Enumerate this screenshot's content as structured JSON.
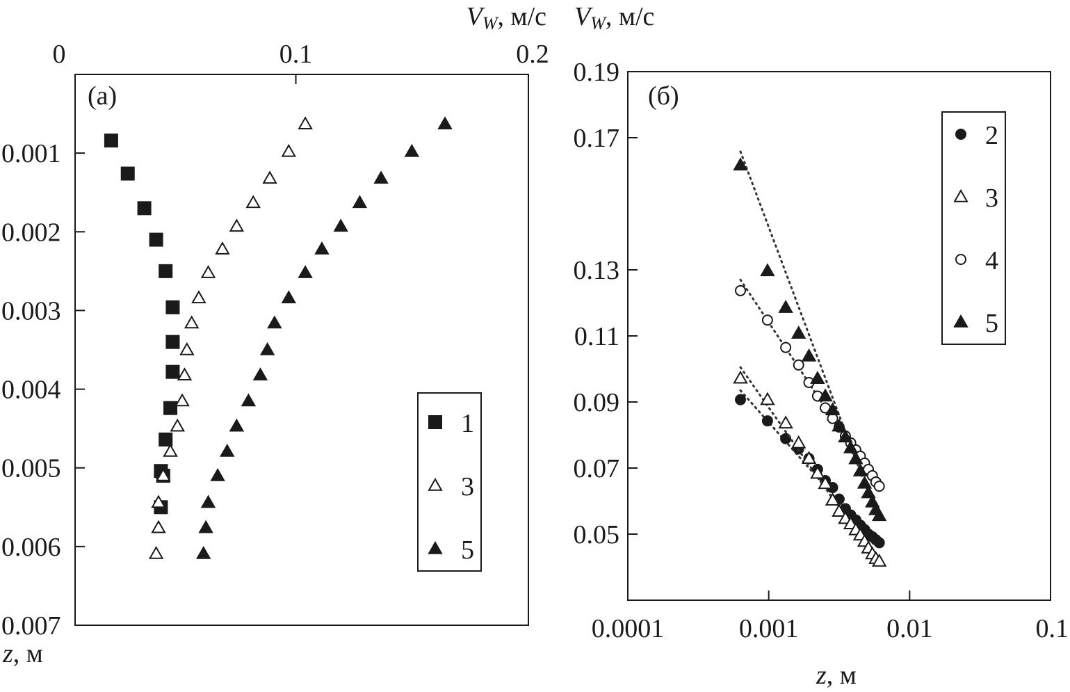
{
  "chart_data": [
    {
      "panel": "(a)",
      "type": "scatter",
      "x_axis_label": "V",
      "x_axis_sub": "W",
      "x_axis_unit": ", м/с",
      "y_axis_label": "z",
      "y_axis_unit": ", м",
      "xlim": [
        0,
        0.2
      ],
      "ylim": [
        0,
        0.007
      ],
      "y_reversed": true,
      "x_axis_position": "top",
      "x_ticks": [
        0,
        0.1,
        0.2
      ],
      "x_tick_labels": [
        "0",
        "0.1",
        "0.2"
      ],
      "y_ticks": [
        0.001,
        0.002,
        0.003,
        0.004,
        0.005,
        0.006,
        0.007
      ],
      "y_tick_labels": [
        "0.001",
        "0.002",
        "0.003",
        "0.004",
        "0.005",
        "0.006",
        "0.007"
      ],
      "legend_position": "bottom-right",
      "series": [
        {
          "name": "1",
          "marker": "square-filled",
          "points": [
            [
              0.022,
              0.00084
            ],
            [
              0.029,
              0.00126
            ],
            [
              0.036,
              0.0017
            ],
            [
              0.041,
              0.0021
            ],
            [
              0.045,
              0.0025
            ],
            [
              0.048,
              0.00296
            ],
            [
              0.048,
              0.0034
            ],
            [
              0.048,
              0.00378
            ],
            [
              0.047,
              0.00424
            ],
            [
              0.045,
              0.00464
            ],
            [
              0.043,
              0.00504
            ],
            [
              0.044,
              0.0051
            ],
            [
              0.043,
              0.0055
            ]
          ]
        },
        {
          "name": "3",
          "marker": "triangle-open",
          "points": [
            [
              0.104,
              0.00063
            ],
            [
              0.097,
              0.00098
            ],
            [
              0.089,
              0.00132
            ],
            [
              0.082,
              0.00163
            ],
            [
              0.075,
              0.00193
            ],
            [
              0.069,
              0.00222
            ],
            [
              0.063,
              0.00252
            ],
            [
              0.059,
              0.00284
            ],
            [
              0.056,
              0.00316
            ],
            [
              0.054,
              0.0035
            ],
            [
              0.053,
              0.00382
            ],
            [
              0.052,
              0.00415
            ],
            [
              0.05,
              0.00447
            ],
            [
              0.047,
              0.00479
            ],
            [
              0.044,
              0.0051
            ],
            [
              0.042,
              0.00544
            ],
            [
              0.042,
              0.00576
            ],
            [
              0.041,
              0.00609
            ]
          ]
        },
        {
          "name": "5",
          "marker": "triangle-filled",
          "points": [
            [
              0.163,
              0.00063
            ],
            [
              0.149,
              0.00098
            ],
            [
              0.136,
              0.00132
            ],
            [
              0.127,
              0.00163
            ],
            [
              0.119,
              0.00193
            ],
            [
              0.111,
              0.00222
            ],
            [
              0.104,
              0.00252
            ],
            [
              0.097,
              0.00284
            ],
            [
              0.091,
              0.00316
            ],
            [
              0.088,
              0.0035
            ],
            [
              0.085,
              0.00382
            ],
            [
              0.08,
              0.00415
            ],
            [
              0.075,
              0.00447
            ],
            [
              0.071,
              0.00479
            ],
            [
              0.067,
              0.0051
            ],
            [
              0.063,
              0.00544
            ],
            [
              0.062,
              0.00576
            ],
            [
              0.061,
              0.00609
            ]
          ]
        }
      ]
    },
    {
      "panel": "(б)",
      "type": "scatter",
      "x_axis_label": "z",
      "x_axis_unit": ", м",
      "y_axis_label": "V",
      "y_axis_sub": "W",
      "y_axis_unit": ", м/с",
      "x_scale": "log",
      "xlim": [
        0.0001,
        0.1
      ],
      "ylim": [
        0.03,
        0.19
      ],
      "x_ticks": [
        0.0001,
        0.001,
        0.01,
        0.1
      ],
      "x_tick_labels": [
        "0.0001",
        "0.001",
        "0.01",
        "0.1"
      ],
      "y_ticks": [
        0.05,
        0.07,
        0.09,
        0.11,
        0.13,
        0.17,
        0.19
      ],
      "y_tick_labels": [
        "0.05",
        "0.07",
        "0.09",
        "0.11",
        "0.13",
        "0.17",
        "0.19"
      ],
      "legend_position": "top-right",
      "trend_lines": "dotted",
      "series": [
        {
          "name": "2",
          "marker": "circle-filled",
          "fit": [
            [
              0.00063,
              0.0935
            ],
            [
              0.0058,
              0.047
            ]
          ],
          "points": [
            [
              0.00063,
              0.0907
            ],
            [
              0.00098,
              0.0843
            ],
            [
              0.00132,
              0.0789
            ],
            [
              0.00163,
              0.0758
            ],
            [
              0.00193,
              0.0729
            ],
            [
              0.00222,
              0.0696
            ],
            [
              0.00252,
              0.0662
            ],
            [
              0.00284,
              0.0641
            ],
            [
              0.00316,
              0.0606
            ],
            [
              0.0035,
              0.0577
            ],
            [
              0.00382,
              0.0558
            ],
            [
              0.00415,
              0.0543
            ],
            [
              0.00447,
              0.0527
            ],
            [
              0.00479,
              0.0514
            ],
            [
              0.0051,
              0.05
            ],
            [
              0.00544,
              0.0492
            ],
            [
              0.00576,
              0.0483
            ],
            [
              0.00609,
              0.0474
            ]
          ]
        },
        {
          "name": "3",
          "marker": "triangle-open",
          "fit": [
            [
              0.00063,
              0.1005
            ],
            [
              0.0058,
              0.042
            ]
          ],
          "points": [
            [
              0.00063,
              0.0972
            ],
            [
              0.00098,
              0.0907
            ],
            [
              0.00132,
              0.0836
            ],
            [
              0.00163,
              0.0776
            ],
            [
              0.00193,
              0.0729
            ],
            [
              0.00222,
              0.0684
            ],
            [
              0.00252,
              0.0653
            ],
            [
              0.00284,
              0.0603
            ],
            [
              0.00316,
              0.0569
            ],
            [
              0.0035,
              0.0547
            ],
            [
              0.00382,
              0.0531
            ],
            [
              0.00415,
              0.0513
            ],
            [
              0.00447,
              0.0497
            ],
            [
              0.00479,
              0.0478
            ],
            [
              0.0051,
              0.0458
            ],
            [
              0.00544,
              0.044
            ],
            [
              0.00576,
              0.0426
            ],
            [
              0.00609,
              0.0418
            ]
          ]
        },
        {
          "name": "4",
          "marker": "circle-open",
          "fit": [
            [
              0.00063,
              0.127
            ],
            [
              0.0058,
              0.065
            ]
          ],
          "points": [
            [
              0.00063,
              0.1237
            ],
            [
              0.00098,
              0.1148
            ],
            [
              0.00132,
              0.1065
            ],
            [
              0.00163,
              0.1012
            ],
            [
              0.00193,
              0.0959
            ],
            [
              0.00222,
              0.0918
            ],
            [
              0.00252,
              0.0882
            ],
            [
              0.00284,
              0.085
            ],
            [
              0.00316,
              0.0824
            ],
            [
              0.0035,
              0.0797
            ],
            [
              0.00382,
              0.0776
            ],
            [
              0.00415,
              0.0755
            ],
            [
              0.00447,
              0.0736
            ],
            [
              0.00479,
              0.0715
            ],
            [
              0.0051,
              0.0696
            ],
            [
              0.00544,
              0.0677
            ],
            [
              0.00576,
              0.0658
            ],
            [
              0.00609,
              0.0645
            ]
          ]
        },
        {
          "name": "5",
          "marker": "triangle-filled",
          "fit": [
            [
              0.00063,
              0.1658
            ],
            [
              0.0058,
              0.056
            ]
          ],
          "points": [
            [
              0.00063,
              0.1617
            ],
            [
              0.00098,
              0.1297
            ],
            [
              0.00132,
              0.1186
            ],
            [
              0.00163,
              0.1108
            ],
            [
              0.00193,
              0.1039
            ],
            [
              0.00222,
              0.0971
            ],
            [
              0.00252,
              0.0918
            ],
            [
              0.00284,
              0.0876
            ],
            [
              0.00316,
              0.0827
            ],
            [
              0.0035,
              0.0794
            ],
            [
              0.00382,
              0.0761
            ],
            [
              0.00415,
              0.0728
            ],
            [
              0.00447,
              0.0691
            ],
            [
              0.00479,
              0.0654
            ],
            [
              0.0051,
              0.0625
            ],
            [
              0.00544,
              0.0597
            ],
            [
              0.00576,
              0.0574
            ],
            [
              0.00609,
              0.0556
            ]
          ]
        }
      ]
    }
  ]
}
